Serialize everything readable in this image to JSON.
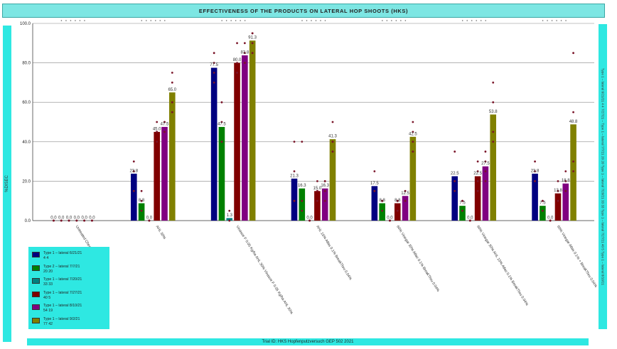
{
  "chart_data": {
    "type": "bar",
    "title": "EFFECTIVENESS OF THE PRODUCTS ON LATERAL HOP SHOOTS (HKS)",
    "ylabel": "%DISEC",
    "xlabel": "",
    "ylim": [
      0,
      100
    ],
    "yticks": [
      "0.0",
      "20.0",
      "40.0",
      "60.0",
      "80.0",
      "100.0"
    ],
    "grid": true,
    "categories": [
      "Untreated Check",
      "AHL 30%",
      "Vinasse F 0.05 Kg/ha AHL 30% Vinasse F 0.05 Kg/ha AHL 30%",
      "AHL 15% Atlas 0.1% BreakThru 0.04%",
      "60% Vinegar 30% Atlas 0.1% BreakThru 0.04%",
      "60% Vinegar 30% AHL 15% Atlas 0.1% BreakThru 0.04%",
      "60% Vinegar Atlas 0.1% + BreakThru 0.04%"
    ],
    "series": [
      {
        "name": "Type 1 – lateral 6/21/21",
        "sub": "4 4",
        "color": "#000080",
        "values": [
          0.0,
          23.8,
          77.5,
          21.3,
          17.5,
          22.5,
          23.8
        ]
      },
      {
        "name": "Type 2 – lateral 7/7/21",
        "sub": "20 20",
        "color": "#008000",
        "values": [
          0.0,
          8.8,
          47.5,
          16.3,
          8.8,
          7.5,
          7.5
        ]
      },
      {
        "name": "Type 1 – lateral 7/20/21",
        "sub": "33 33",
        "color": "#008080",
        "values": [
          0.0,
          0.0,
          1.3,
          0.0,
          0.0,
          0.0,
          0.0
        ]
      },
      {
        "name": "Type 1 – lateral 7/27/21",
        "sub": "40 5",
        "color": "#800000",
        "values": [
          0.0,
          45.0,
          80.0,
          15.0,
          8.8,
          22.5,
          13.8
        ]
      },
      {
        "name": "Type 1 – lateral 8/10/21",
        "sub": "54 19",
        "color": "#800080",
        "values": [
          0.0,
          47.5,
          83.8,
          16.3,
          12.5,
          27.5,
          18.8
        ]
      },
      {
        "name": "Type 1 – lateral 9/2/21",
        "sub": "77 42",
        "color": "#808000",
        "values": [
          0.0,
          65.0,
          91.3,
          41.3,
          42.5,
          53.8,
          48.8
        ]
      }
    ],
    "labels": [
      [
        "0.0",
        "23.8",
        "77.5",
        "21.3",
        "17.5",
        "22.5",
        "23.8"
      ],
      [
        "0.0",
        "8.8",
        "47.5",
        "16.3",
        "8.8",
        "7.5",
        "7.5"
      ],
      [
        "0.0",
        "0.0",
        "1.3",
        "0.0",
        "0.0",
        "0.0",
        "0.0"
      ],
      [
        "0.0",
        "45.0",
        "80.0",
        "15.0",
        "8.8",
        "22.5",
        "13.8"
      ],
      [
        "0.0",
        "47.5",
        "83.8",
        "16.3",
        "12.5",
        "27.5",
        "18.8"
      ],
      [
        "0.0",
        "65.0",
        "91.3",
        "41.3",
        "42.5",
        "53.8",
        "48.8"
      ]
    ],
    "points": [
      [
        [
          0,
          0,
          0,
          0
        ],
        [
          30,
          15,
          25,
          25
        ],
        [
          85,
          70,
          75,
          80
        ],
        [
          40,
          25,
          10,
          10
        ],
        [
          25,
          15,
          15,
          15
        ],
        [
          35,
          20,
          20,
          15
        ],
        [
          30,
          20,
          25,
          20
        ]
      ],
      [
        [
          0,
          0,
          0,
          0
        ],
        [
          15,
          10,
          5,
          5
        ],
        [
          60,
          50,
          40,
          40
        ],
        [
          40,
          10,
          10,
          5
        ],
        [
          10,
          10,
          10,
          5
        ],
        [
          10,
          10,
          5,
          5
        ],
        [
          10,
          10,
          5,
          5
        ]
      ],
      [
        [
          0,
          0,
          0,
          0
        ],
        [
          0,
          0,
          0,
          0
        ],
        [
          5,
          0,
          0,
          0
        ],
        [
          0,
          0,
          0,
          0
        ],
        [
          0,
          0,
          0,
          0
        ],
        [
          0,
          0,
          0,
          0
        ],
        [
          0,
          0,
          0,
          0
        ]
      ],
      [
        [
          0,
          0,
          0,
          0
        ],
        [
          50,
          45,
          45,
          40
        ],
        [
          90,
          80,
          75,
          75
        ],
        [
          20,
          15,
          15,
          10
        ],
        [
          10,
          10,
          10,
          5
        ],
        [
          30,
          25,
          20,
          15
        ],
        [
          20,
          15,
          10,
          10
        ]
      ],
      [
        [
          0,
          0,
          0,
          0
        ],
        [
          50,
          50,
          45,
          45
        ],
        [
          90,
          85,
          80,
          80
        ],
        [
          20,
          20,
          15,
          10
        ],
        [
          15,
          15,
          10,
          10
        ],
        [
          35,
          30,
          25,
          20
        ],
        [
          25,
          20,
          15,
          15
        ]
      ],
      [
        [
          0,
          0,
          0,
          0
        ],
        [
          75,
          70,
          60,
          55
        ],
        [
          95,
          95,
          90,
          85
        ],
        [
          50,
          40,
          40,
          35
        ],
        [
          50,
          45,
          40,
          35
        ],
        [
          70,
          60,
          45,
          40
        ],
        [
          85,
          55,
          30,
          25
        ]
      ]
    ],
    "legend_position": "bottom-left"
  },
  "footer": "Trial ID: HKS Hopfenputzversuch GEP 502 2021",
  "right_note": "Type 1 – lateral 6/21/21 4 4 7/27/21 – Type 1 – lateral 7/7/21 20 20 Type 1 – lateral 7/20/21 33 33 Type 1 – lateral 7/27/21 40 5 Type 1 – lateral 8/10/21"
}
